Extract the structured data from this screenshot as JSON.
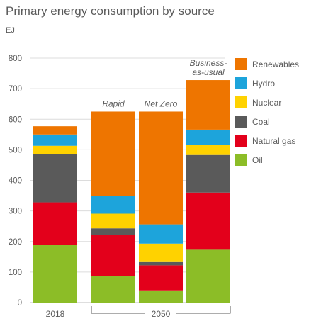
{
  "title": "Primary energy consumption by source",
  "unit": "EJ",
  "chart_data": {
    "type": "bar",
    "stacked": true,
    "title": "Primary energy consumption by source",
    "ylabel": "EJ",
    "ylim": [
      0,
      800
    ],
    "yticks": [
      0,
      100,
      200,
      300,
      400,
      500,
      600,
      700,
      800
    ],
    "grid": true,
    "legend_position": "right",
    "categories": [
      "2018",
      "Rapid",
      "Net Zero",
      "Business-as-usual"
    ],
    "category_labels": [
      "",
      "Rapid",
      "Net Zero",
      "Business-\nas-usual"
    ],
    "x_group_labels": [
      {
        "label": "2018",
        "categories": [
          "2018"
        ]
      },
      {
        "label": "2050",
        "categories": [
          "Rapid",
          "Net Zero",
          "Business-as-usual"
        ]
      }
    ],
    "series": [
      {
        "name": "Oil",
        "color": "#8cbd27",
        "values": [
          190,
          88,
          40,
          173
        ]
      },
      {
        "name": "Natural gas",
        "color": "#e3001b",
        "values": [
          138,
          133,
          82,
          187
        ]
      },
      {
        "name": "Coal",
        "color": "#5a5a5a",
        "values": [
          157,
          22,
          13,
          123
        ]
      },
      {
        "name": "Nuclear",
        "color": "#ffd200",
        "values": [
          28,
          48,
          58,
          33
        ]
      },
      {
        "name": "Hydro",
        "color": "#1da4db",
        "values": [
          37,
          57,
          63,
          50
        ]
      },
      {
        "name": "Renewables",
        "color": "#ee7500",
        "values": [
          27,
          277,
          369,
          162
        ]
      }
    ],
    "legend_order": [
      "Renewables",
      "Hydro",
      "Nuclear",
      "Coal",
      "Natural gas",
      "Oil"
    ]
  }
}
